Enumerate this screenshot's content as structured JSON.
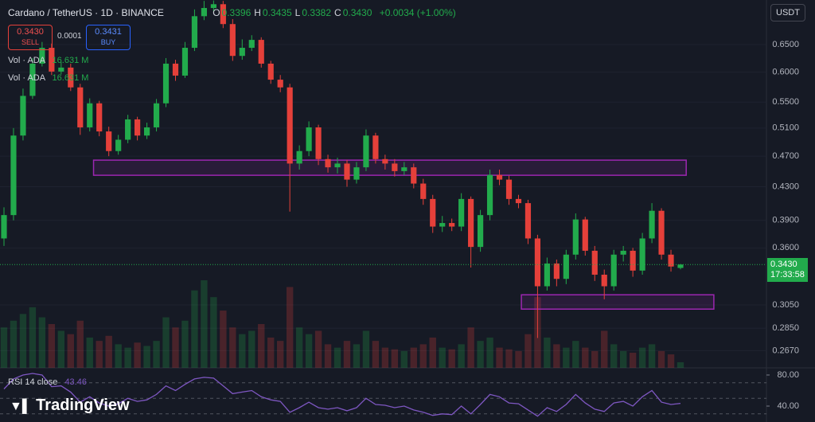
{
  "chart_data": {
    "type": "candlestick",
    "title": "Cardano / TetherUS · 1D · BINANCE",
    "ohlc_legend": [
      {
        "key": "O",
        "value": "0.3396"
      },
      {
        "key": "H",
        "value": "0.3435"
      },
      {
        "key": "L",
        "value": "0.3382"
      },
      {
        "key": "C",
        "value": "0.3430"
      }
    ],
    "change": "+0.0034 (+1.00%)",
    "open": [
      0.37,
      0.396,
      0.499,
      0.56,
      0.615,
      0.644,
      0.601,
      0.608,
      0.574,
      0.511,
      0.548,
      0.505,
      0.477,
      0.493,
      0.523,
      0.499,
      0.511,
      0.548,
      0.615,
      0.594,
      0.644,
      0.706,
      0.723,
      0.731,
      0.69,
      0.629,
      0.644,
      0.659,
      0.615,
      0.587,
      0.574,
      0.46,
      0.477,
      0.511,
      0.466,
      0.455,
      0.46,
      0.439,
      0.455,
      0.499,
      0.466,
      0.46,
      0.45,
      0.455,
      0.434,
      0.415,
      0.383,
      0.387,
      0.383,
      0.415,
      0.361,
      0.396,
      0.445,
      0.439,
      0.415,
      0.41,
      0.37,
      0.322,
      0.344,
      0.329,
      0.353,
      0.391,
      0.357,
      0.333,
      0.322,
      0.353,
      0.357,
      0.337,
      0.37,
      0.401,
      0.353,
      0.3396
    ],
    "high": [
      0.405,
      0.51,
      0.572,
      0.625,
      0.655,
      0.652,
      0.618,
      0.615,
      0.58,
      0.556,
      0.552,
      0.512,
      0.5,
      0.53,
      0.527,
      0.518,
      0.555,
      0.625,
      0.622,
      0.655,
      0.72,
      0.738,
      0.739,
      0.738,
      0.7,
      0.66,
      0.668,
      0.664,
      0.62,
      0.595,
      0.58,
      0.485,
      0.52,
      0.515,
      0.472,
      0.468,
      0.465,
      0.462,
      0.508,
      0.503,
      0.472,
      0.466,
      0.462,
      0.46,
      0.44,
      0.42,
      0.395,
      0.392,
      0.422,
      0.418,
      0.402,
      0.452,
      0.452,
      0.444,
      0.42,
      0.414,
      0.374,
      0.35,
      0.348,
      0.358,
      0.398,
      0.394,
      0.362,
      0.338,
      0.358,
      0.362,
      0.36,
      0.376,
      0.41,
      0.404,
      0.358,
      0.3435
    ],
    "low": [
      0.362,
      0.39,
      0.492,
      0.555,
      0.61,
      0.595,
      0.596,
      0.568,
      0.5,
      0.505,
      0.498,
      0.47,
      0.472,
      0.488,
      0.492,
      0.494,
      0.505,
      0.542,
      0.585,
      0.59,
      0.638,
      0.698,
      0.715,
      0.682,
      0.62,
      0.622,
      0.638,
      0.608,
      0.58,
      0.566,
      0.4,
      0.452,
      0.47,
      0.458,
      0.448,
      0.447,
      0.43,
      0.434,
      0.45,
      0.46,
      0.452,
      0.443,
      0.445,
      0.428,
      0.408,
      0.376,
      0.377,
      0.378,
      0.378,
      0.34,
      0.356,
      0.39,
      0.432,
      0.408,
      0.404,
      0.364,
      0.277,
      0.318,
      0.322,
      0.324,
      0.348,
      0.352,
      0.327,
      0.31,
      0.318,
      0.346,
      0.331,
      0.333,
      0.365,
      0.348,
      0.336,
      0.3382
    ],
    "close": [
      0.396,
      0.499,
      0.56,
      0.615,
      0.644,
      0.601,
      0.608,
      0.574,
      0.511,
      0.548,
      0.505,
      0.477,
      0.493,
      0.523,
      0.499,
      0.511,
      0.548,
      0.615,
      0.594,
      0.644,
      0.706,
      0.723,
      0.731,
      0.69,
      0.629,
      0.644,
      0.659,
      0.615,
      0.587,
      0.574,
      0.46,
      0.477,
      0.511,
      0.466,
      0.455,
      0.46,
      0.439,
      0.455,
      0.499,
      0.466,
      0.46,
      0.45,
      0.455,
      0.434,
      0.415,
      0.383,
      0.387,
      0.383,
      0.415,
      0.361,
      0.396,
      0.445,
      0.439,
      0.415,
      0.41,
      0.37,
      0.322,
      0.344,
      0.329,
      0.353,
      0.391,
      0.357,
      0.333,
      0.322,
      0.353,
      0.357,
      0.337,
      0.37,
      0.401,
      0.353,
      0.341,
      0.343
    ],
    "up_color": "#22ab4c",
    "down_color": "#e5403a",
    "log_scale": true,
    "ylim": [
      0.254,
      0.74
    ],
    "yticks": [
      {
        "value": 0.65,
        "label": "0.6500"
      },
      {
        "value": 0.6,
        "label": "0.6000"
      },
      {
        "value": 0.55,
        "label": "0.5500"
      },
      {
        "value": 0.51,
        "label": "0.5100"
      },
      {
        "value": 0.47,
        "label": "0.4700"
      },
      {
        "value": 0.43,
        "label": "0.4300"
      },
      {
        "value": 0.39,
        "label": "0.3900"
      },
      {
        "value": 0.36,
        "label": "0.3600"
      },
      {
        "value": 0.305,
        "label": "0.3050"
      },
      {
        "value": 0.285,
        "label": "0.2850"
      },
      {
        "value": 0.267,
        "label": "0.2670"
      }
    ],
    "grid": true,
    "volume": {
      "name": "Vol · ADA",
      "value_label": "16.631 M",
      "values": [
        120,
        140,
        160,
        180,
        150,
        130,
        110,
        100,
        140,
        90,
        80,
        95,
        70,
        60,
        75,
        65,
        80,
        150,
        120,
        140,
        230,
        260,
        210,
        170,
        120,
        100,
        110,
        130,
        90,
        80,
        240,
        120,
        100,
        110,
        70,
        60,
        80,
        70,
        110,
        80,
        60,
        55,
        50,
        60,
        70,
        90,
        60,
        55,
        70,
        120,
        80,
        90,
        60,
        55,
        50,
        100,
        210,
        90,
        70,
        60,
        80,
        60,
        50,
        110,
        70,
        50,
        45,
        60,
        70,
        50,
        40,
        16.631
      ]
    },
    "rsi": {
      "name": "RSI 14 close",
      "value_label": "43.46",
      "color": "#7e57c2",
      "ylim": [
        19.5,
        89.2
      ],
      "yticks": [
        {
          "value": 80,
          "label": "80.00"
        },
        {
          "value": 40,
          "label": "40.00"
        }
      ],
      "levels": [
        70,
        50,
        30
      ],
      "values": [
        62,
        75,
        80,
        82,
        80,
        65,
        66,
        58,
        45,
        52,
        44,
        40,
        43,
        50,
        46,
        48,
        55,
        66,
        60,
        68,
        75,
        77,
        76,
        66,
        56,
        58,
        60,
        52,
        48,
        46,
        32,
        38,
        45,
        38,
        36,
        38,
        34,
        38,
        50,
        42,
        41,
        38,
        40,
        35,
        32,
        28,
        30,
        29,
        40,
        30,
        42,
        55,
        52,
        44,
        43,
        35,
        27,
        38,
        33,
        42,
        55,
        44,
        36,
        33,
        44,
        46,
        40,
        52,
        60,
        45,
        42,
        43.46
      ]
    },
    "zones": [
      {
        "x": [
          9.4,
          71.6
        ],
        "y": [
          0.4446,
          0.4646
        ],
        "color": "#9c27b0"
      },
      {
        "x": [
          54.3,
          74.5
        ],
        "y": [
          0.3013,
          0.3141
        ],
        "color": "#9c27b0"
      }
    ],
    "currency": "USDT",
    "last_price": {
      "label": "0.3430",
      "countdown": "17:33:58"
    }
  },
  "trade": {
    "sell_price": "0.3430",
    "sell": "SELL",
    "spread": "0.0001",
    "buy_price": "0.3431",
    "buy": "BUY"
  },
  "brand": "TradingView"
}
